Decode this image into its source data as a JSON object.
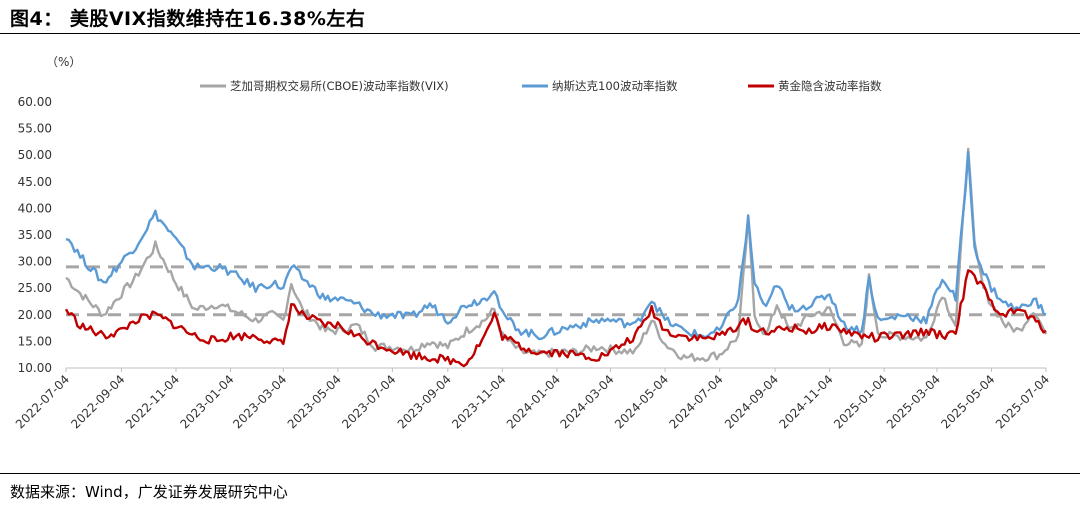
{
  "header": {
    "title": "图4：  美股VIX指数维持在16.38%左右"
  },
  "footer": {
    "source": "数据来源：Wind，广发证券发展研究中心"
  },
  "colors": {
    "vix": "#a6a6a6",
    "ndx": "#5b9bd5",
    "gold": "#c00000",
    "ref": "#a6a6a6"
  },
  "chart_data": {
    "type": "line",
    "unit_label": "（%）",
    "ylim": [
      10,
      60
    ],
    "yticks": [
      "60.00",
      "55.00",
      "50.00",
      "45.00",
      "40.00",
      "35.00",
      "30.00",
      "25.00",
      "20.00",
      "15.00",
      "10.00"
    ],
    "xticks": [
      "2022-07-04",
      "2022-09-04",
      "2022-11-04",
      "2023-01-04",
      "2023-03-04",
      "2023-05-04",
      "2023-07-04",
      "2023-09-04",
      "2023-11-04",
      "2024-01-04",
      "2024-03-04",
      "2024-05-04",
      "2024-07-04",
      "2024-09-04",
      "2024-11-04",
      "2025-01-04",
      "2025-03-04",
      "2025-05-04",
      "2025-07-04"
    ],
    "x_start": "2022-07-04",
    "x_end": "2025-07-04",
    "reference_lines": [
      29,
      20
    ],
    "series": [
      {
        "name": "芝加哥期权交易所(CBOE)波动率指数(VIX)",
        "color": "#a6a6a6",
        "points": [
          [
            "2022-07-04",
            27
          ],
          [
            "2022-07-20",
            24
          ],
          [
            "2022-08-15",
            20
          ],
          [
            "2022-09-04",
            24
          ],
          [
            "2022-09-20",
            27
          ],
          [
            "2022-10-12",
            33
          ],
          [
            "2022-11-04",
            26
          ],
          [
            "2022-11-25",
            21
          ],
          [
            "2022-12-20",
            22
          ],
          [
            "2023-01-04",
            21
          ],
          [
            "2023-02-01",
            19
          ],
          [
            "2023-02-20",
            20
          ],
          [
            "2023-03-04",
            19
          ],
          [
            "2023-03-13",
            26
          ],
          [
            "2023-03-25",
            21
          ],
          [
            "2023-04-20",
            17
          ],
          [
            "2023-05-04",
            17
          ],
          [
            "2023-05-25",
            18
          ],
          [
            "2023-06-15",
            14
          ],
          [
            "2023-07-04",
            14
          ],
          [
            "2023-07-25",
            13.5
          ],
          [
            "2023-08-15",
            15
          ],
          [
            "2023-09-04",
            14
          ],
          [
            "2023-09-25",
            17
          ],
          [
            "2023-10-15",
            19
          ],
          [
            "2023-10-26",
            21
          ],
          [
            "2023-11-04",
            16
          ],
          [
            "2023-11-25",
            13
          ],
          [
            "2023-12-15",
            12.5
          ],
          [
            "2024-01-04",
            13
          ],
          [
            "2024-01-25",
            13
          ],
          [
            "2024-02-20",
            14
          ],
          [
            "2024-03-04",
            13.5
          ],
          [
            "2024-04-01",
            13
          ],
          [
            "2024-04-19",
            19
          ],
          [
            "2024-05-04",
            14.5
          ],
          [
            "2024-05-25",
            12
          ],
          [
            "2024-06-15",
            12
          ],
          [
            "2024-07-04",
            12.5
          ],
          [
            "2024-07-25",
            16
          ],
          [
            "2024-08-05",
            38
          ],
          [
            "2024-08-12",
            20
          ],
          [
            "2024-08-25",
            16
          ],
          [
            "2024-09-06",
            22
          ],
          [
            "2024-09-20",
            17
          ],
          [
            "2024-10-15",
            20
          ],
          [
            "2024-11-04",
            21
          ],
          [
            "2024-11-20",
            15
          ],
          [
            "2024-12-10",
            14
          ],
          [
            "2024-12-18",
            27
          ],
          [
            "2024-12-28",
            17
          ],
          [
            "2025-01-04",
            16
          ],
          [
            "2025-01-25",
            16
          ],
          [
            "2025-02-20",
            15.5
          ],
          [
            "2025-03-10",
            24
          ],
          [
            "2025-03-25",
            18
          ],
          [
            "2025-04-08",
            52
          ],
          [
            "2025-04-15",
            33
          ],
          [
            "2025-04-25",
            25
          ],
          [
            "2025-05-04",
            22
          ],
          [
            "2025-05-20",
            18
          ],
          [
            "2025-06-04",
            17
          ],
          [
            "2025-06-20",
            21
          ],
          [
            "2025-07-04",
            16.38
          ]
        ]
      },
      {
        "name": "纳斯达克100波动率指数",
        "color": "#5b9bd5",
        "points": [
          [
            "2022-07-04",
            35
          ],
          [
            "2022-07-20",
            31
          ],
          [
            "2022-08-15",
            26
          ],
          [
            "2022-09-04",
            30
          ],
          [
            "2022-09-20",
            33
          ],
          [
            "2022-10-12",
            39
          ],
          [
            "2022-11-04",
            34
          ],
          [
            "2022-11-25",
            29
          ],
          [
            "2022-12-20",
            29
          ],
          [
            "2023-01-04",
            28
          ],
          [
            "2023-02-01",
            25
          ],
          [
            "2023-02-20",
            26
          ],
          [
            "2023-03-04",
            25
          ],
          [
            "2023-03-13",
            29
          ],
          [
            "2023-03-25",
            27
          ],
          [
            "2023-04-20",
            23
          ],
          [
            "2023-05-04",
            23
          ],
          [
            "2023-05-25",
            22
          ],
          [
            "2023-06-15",
            20
          ],
          [
            "2023-07-04",
            20
          ],
          [
            "2023-07-25",
            19.5
          ],
          [
            "2023-08-15",
            22
          ],
          [
            "2023-09-04",
            19
          ],
          [
            "2023-09-25",
            22
          ],
          [
            "2023-10-15",
            23
          ],
          [
            "2023-10-26",
            25
          ],
          [
            "2023-11-04",
            20
          ],
          [
            "2023-11-25",
            17
          ],
          [
            "2023-12-15",
            16
          ],
          [
            "2024-01-04",
            17
          ],
          [
            "2024-01-25",
            18
          ],
          [
            "2024-02-20",
            19
          ],
          [
            "2024-03-04",
            19
          ],
          [
            "2024-04-01",
            18
          ],
          [
            "2024-04-19",
            23
          ],
          [
            "2024-05-04",
            19
          ],
          [
            "2024-05-25",
            17
          ],
          [
            "2024-06-15",
            16
          ],
          [
            "2024-07-04",
            17
          ],
          [
            "2024-07-25",
            23
          ],
          [
            "2024-08-05",
            38
          ],
          [
            "2024-08-12",
            26
          ],
          [
            "2024-08-25",
            21
          ],
          [
            "2024-09-06",
            26
          ],
          [
            "2024-09-20",
            21
          ],
          [
            "2024-10-15",
            22
          ],
          [
            "2024-11-04",
            24
          ],
          [
            "2024-11-20",
            18
          ],
          [
            "2024-12-10",
            17
          ],
          [
            "2024-12-18",
            27
          ],
          [
            "2024-12-28",
            19
          ],
          [
            "2025-01-04",
            19
          ],
          [
            "2025-01-25",
            20
          ],
          [
            "2025-02-20",
            19
          ],
          [
            "2025-03-10",
            27
          ],
          [
            "2025-03-25",
            23
          ],
          [
            "2025-04-08",
            50
          ],
          [
            "2025-04-15",
            33
          ],
          [
            "2025-04-25",
            28
          ],
          [
            "2025-05-04",
            25
          ],
          [
            "2025-05-20",
            22
          ],
          [
            "2025-06-04",
            21
          ],
          [
            "2025-06-20",
            23
          ],
          [
            "2025-07-04",
            20
          ]
        ]
      },
      {
        "name": "黄金隐含波动率指数",
        "color": "#c00000",
        "points": [
          [
            "2022-07-04",
            21
          ],
          [
            "2022-07-20",
            18
          ],
          [
            "2022-08-15",
            16
          ],
          [
            "2022-09-04",
            17
          ],
          [
            "2022-09-20",
            19
          ],
          [
            "2022-10-12",
            20
          ],
          [
            "2022-11-04",
            18
          ],
          [
            "2022-11-25",
            16
          ],
          [
            "2022-12-20",
            15
          ],
          [
            "2023-01-04",
            16
          ],
          [
            "2023-02-01",
            16
          ],
          [
            "2023-02-20",
            15
          ],
          [
            "2023-03-04",
            14.5
          ],
          [
            "2023-03-13",
            22
          ],
          [
            "2023-03-25",
            20
          ],
          [
            "2023-04-20",
            18
          ],
          [
            "2023-05-04",
            18
          ],
          [
            "2023-05-25",
            16
          ],
          [
            "2023-06-15",
            14.5
          ],
          [
            "2023-07-04",
            13.5
          ],
          [
            "2023-07-25",
            12.5
          ],
          [
            "2023-08-15",
            12
          ],
          [
            "2023-09-04",
            11.5
          ],
          [
            "2023-09-25",
            11
          ],
          [
            "2023-10-15",
            16
          ],
          [
            "2023-10-26",
            20
          ],
          [
            "2023-11-04",
            16
          ],
          [
            "2023-11-25",
            14
          ],
          [
            "2023-12-15",
            13
          ],
          [
            "2024-01-04",
            13
          ],
          [
            "2024-01-25",
            12.5
          ],
          [
            "2024-02-20",
            12
          ],
          [
            "2024-03-04",
            13
          ],
          [
            "2024-04-01",
            16
          ],
          [
            "2024-04-19",
            21
          ],
          [
            "2024-05-04",
            17
          ],
          [
            "2024-05-25",
            16
          ],
          [
            "2024-06-15",
            15.5
          ],
          [
            "2024-07-04",
            16
          ],
          [
            "2024-07-25",
            18
          ],
          [
            "2024-08-05",
            19
          ],
          [
            "2024-08-12",
            17
          ],
          [
            "2024-08-25",
            17
          ],
          [
            "2024-09-06",
            17
          ],
          [
            "2024-09-20",
            17.5
          ],
          [
            "2024-10-15",
            17
          ],
          [
            "2024-11-04",
            18
          ],
          [
            "2024-11-20",
            17
          ],
          [
            "2024-12-10",
            16
          ],
          [
            "2024-12-18",
            16
          ],
          [
            "2024-12-28",
            15.5
          ],
          [
            "2025-01-04",
            16
          ],
          [
            "2025-01-25",
            16
          ],
          [
            "2025-02-20",
            17
          ],
          [
            "2025-03-10",
            16
          ],
          [
            "2025-03-25",
            17
          ],
          [
            "2025-04-08",
            28
          ],
          [
            "2025-04-15",
            27
          ],
          [
            "2025-04-25",
            25
          ],
          [
            "2025-05-04",
            22
          ],
          [
            "2025-05-20",
            20
          ],
          [
            "2025-06-04",
            21
          ],
          [
            "2025-06-20",
            19
          ],
          [
            "2025-07-04",
            17
          ]
        ]
      }
    ]
  }
}
